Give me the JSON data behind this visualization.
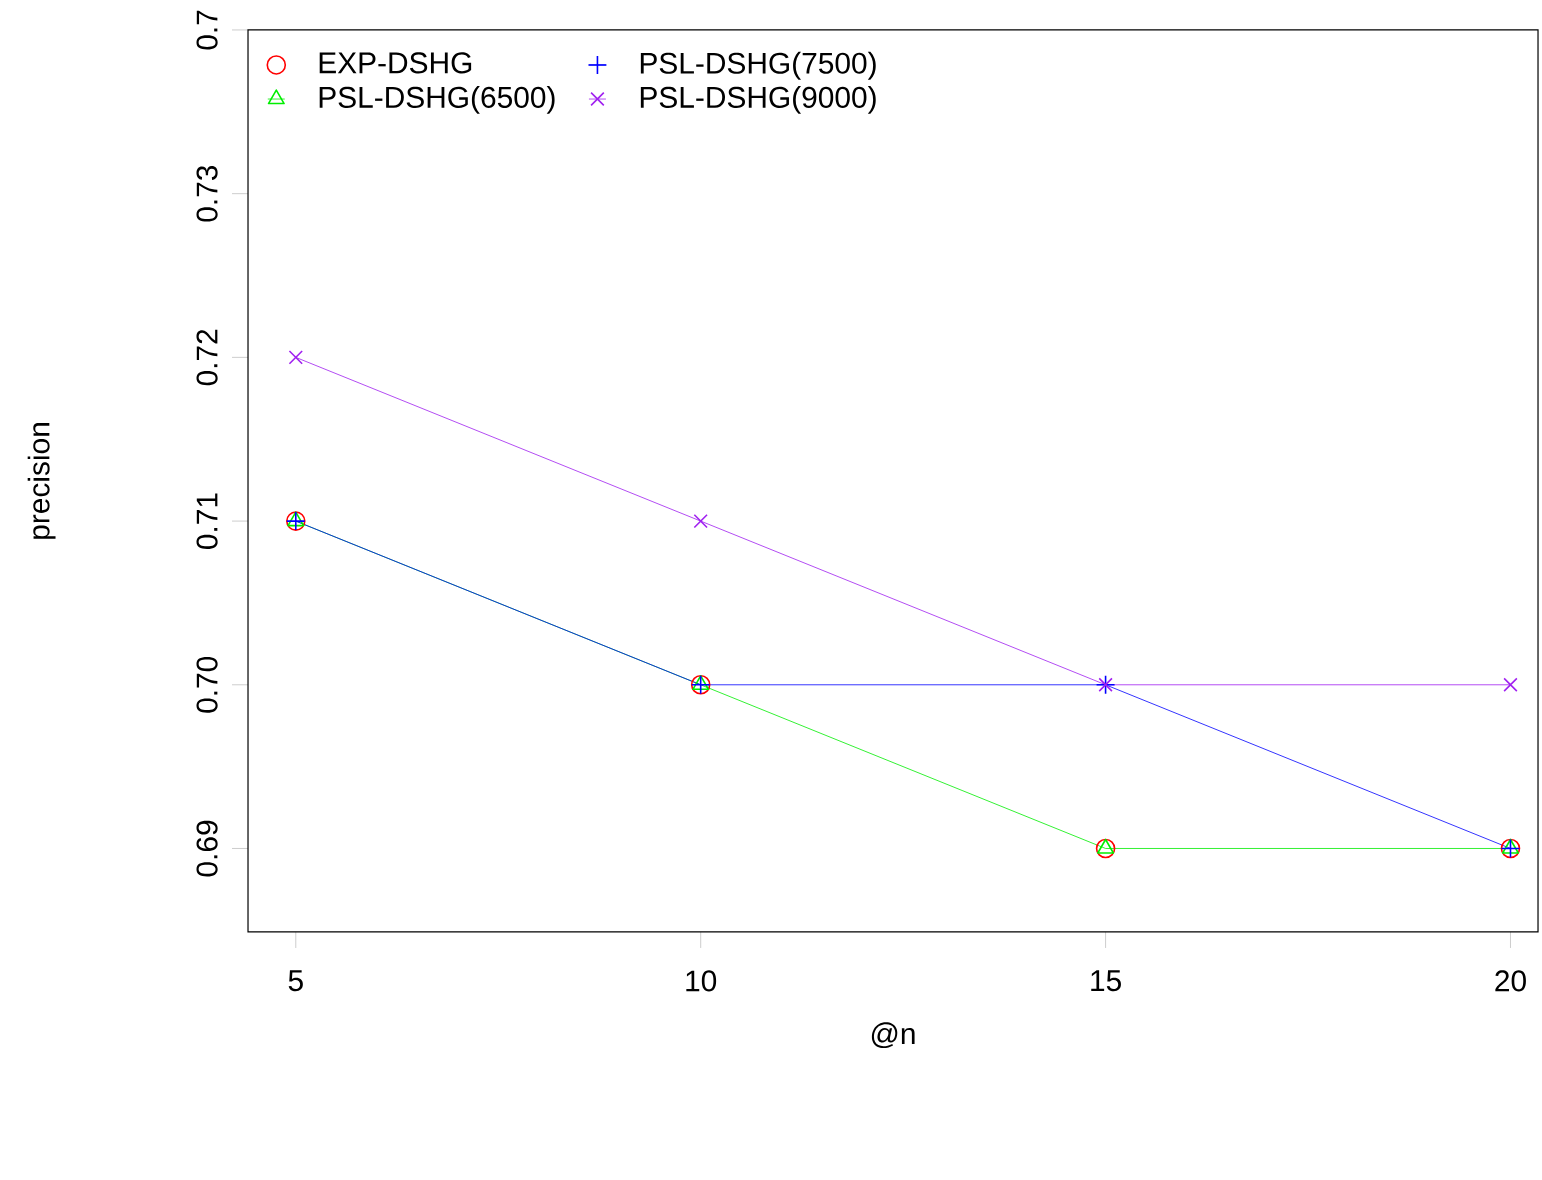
{
  "chart_data": {
    "type": "line",
    "xlabel": "@n",
    "ylabel": "precision",
    "x": [
      5,
      10,
      15,
      20
    ],
    "series": [
      {
        "name": "EXP-DSHG",
        "type": "scatter",
        "color": "#ff0000",
        "marker": "circle",
        "values": [
          0.71,
          0.7,
          0.69,
          0.69
        ]
      },
      {
        "name": "PSL-DSHG(6500)",
        "color": "#00ee00",
        "marker": "triangle",
        "values": [
          0.71,
          0.7,
          0.69,
          0.69
        ]
      },
      {
        "name": "PSL-DSHG(7500)",
        "color": "#0000ff",
        "marker": "plus",
        "values": [
          0.71,
          0.7,
          0.7,
          0.69
        ]
      },
      {
        "name": "PSL-DSHG(9000)",
        "color": "#a020f0",
        "marker": "cross",
        "values": [
          0.72,
          0.71,
          0.7,
          0.7
        ]
      }
    ],
    "xlim": [
      4.41,
      20.34
    ],
    "ylim": [
      0.6849,
      0.74
    ],
    "xticks": [
      5,
      10,
      15,
      20
    ],
    "yticks": [
      {
        "value": 0.69,
        "label": "0.69"
      },
      {
        "value": 0.7,
        "label": "0.70"
      },
      {
        "value": 0.71,
        "label": "0.71"
      },
      {
        "value": 0.72,
        "label": "0.72"
      },
      {
        "value": 0.73,
        "label": "0.73"
      },
      {
        "value": 0.74,
        "label": "0.7"
      }
    ],
    "line_style": "solid",
    "legend": "top left",
    "grid": false
  }
}
